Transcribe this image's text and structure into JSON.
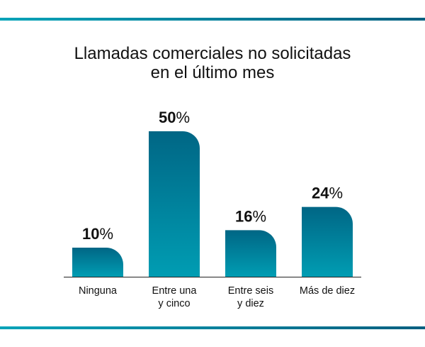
{
  "title_lines": [
    "Llamadas comerciales no solicitadas",
    "en el último mes"
  ],
  "colors": {
    "bar_top": "#006685",
    "bar_bottom": "#009db3",
    "rule_start": "#00a3b8",
    "rule_end": "#005f80"
  },
  "chart_data": {
    "type": "bar",
    "title": "Llamadas comerciales no solicitadas en el último mes",
    "categories": [
      "Ninguna",
      "Entre una y cinco",
      "Entre seis y diez",
      "Más de diez"
    ],
    "category_lines": [
      [
        "Ninguna"
      ],
      [
        "Entre una",
        "y cinco"
      ],
      [
        "Entre seis",
        "y diez"
      ],
      [
        "Más de diez"
      ]
    ],
    "values": [
      10,
      50,
      16,
      24
    ],
    "data_labels": [
      "10%",
      "50%",
      "16%",
      "24%"
    ],
    "unit": "%",
    "ylim": [
      0,
      50
    ],
    "grid": false,
    "legend": "none"
  }
}
